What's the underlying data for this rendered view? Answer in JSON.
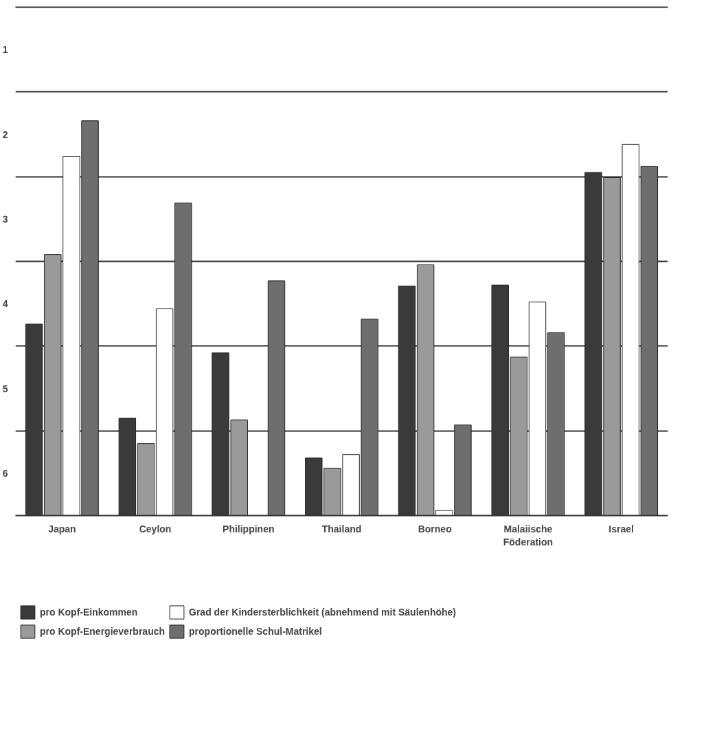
{
  "chart_data": {
    "type": "bar",
    "categories": [
      "Japan",
      "Ceylon",
      "Philippinen",
      "Thailand",
      "Borneo",
      "Malaiische\nFöderation",
      "Israel"
    ],
    "series": [
      {
        "name": "pro Kopf-Einkommen",
        "color": "#3a3a3a",
        "base": [
          6.5,
          6.5,
          6.5,
          6.5,
          6.5,
          6.5,
          6.5
        ],
        "values": [
          -2.26,
          -1.15,
          -1.92,
          -0.68,
          -2.71,
          -2.72,
          -4.05
        ]
      },
      {
        "name": "pro Kopf-Energieverbrauch",
        "color": "#9a9a9a",
        "base": [
          6.5,
          6.5,
          6.5,
          6.5,
          6.5,
          6.5,
          6.5
        ],
        "values": [
          -3.08,
          -0.85,
          -1.13,
          -0.56,
          -2.96,
          -1.87,
          -3.99
        ]
      },
      {
        "name": "Grad der Kindersterblichkeit (abnehmend mit Säulenhöhe)",
        "color": "#ffffff",
        "base": [
          6.5,
          6.5,
          null,
          6.5,
          6.5,
          6.5,
          6.5
        ],
        "values": [
          -4.24,
          -2.44,
          null,
          -0.72,
          -0.06,
          -2.52,
          -4.38
        ]
      },
      {
        "name": "proportionelle Schul-Matrikel",
        "color": "#6e6e6e",
        "base": [
          6.5,
          6.5,
          6.5,
          6.5,
          6.5,
          6.5,
          6.5
        ],
        "values": [
          -4.66,
          -3.69,
          -2.77,
          -2.32,
          -1.07,
          -2.16,
          -4.12
        ]
      }
    ],
    "ylim": [
      6.5,
      0.5
    ],
    "yticks": [
      {
        "value": 6.5,
        "label": null
      },
      6,
      {
        "value": 5.5,
        "label": null
      },
      5,
      {
        "value": 4.5,
        "label": null
      },
      4,
      {
        "value": 3.5,
        "label": null
      },
      3,
      {
        "value": 2.5,
        "label": null
      },
      2,
      {
        "value": 1.5,
        "label": null
      },
      1,
      {
        "value": 0.5,
        "label": null
      }
    ],
    "grid": "y",
    "legend": "bottom"
  }
}
